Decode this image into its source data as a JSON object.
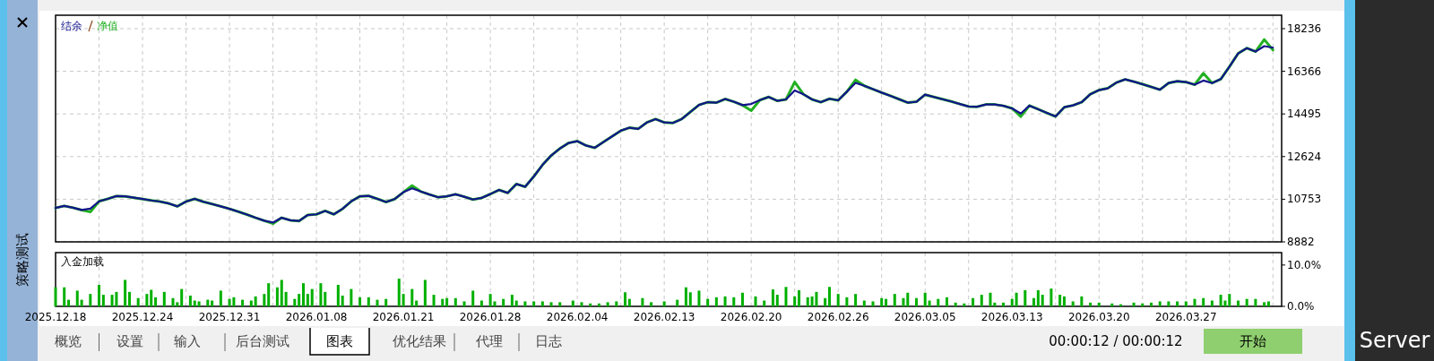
{
  "chart_data": [
    {
      "type": "line",
      "legend": "top left",
      "grid": true,
      "tick_labels": "y",
      "ylim": [
        8882,
        18825
      ],
      "yticks": [
        8882,
        10753,
        12624,
        14495,
        16366,
        18236
      ],
      "categories": [
        null,
        null,
        null,
        null,
        null,
        null,
        null,
        null,
        null,
        null,
        null,
        null,
        null,
        null,
        null,
        null,
        null,
        null,
        null,
        null,
        null,
        null,
        null,
        null,
        null,
        null,
        null,
        null,
        null,
        null,
        null,
        null,
        null,
        null,
        null,
        null,
        null,
        null,
        null,
        null,
        null,
        null,
        null,
        null,
        null,
        null,
        null,
        null,
        null,
        null,
        null,
        null,
        null,
        null,
        null,
        null,
        null,
        null,
        null,
        null,
        null,
        null,
        null,
        null,
        null,
        null,
        null,
        null,
        null,
        null,
        null,
        null,
        null,
        null,
        null,
        null,
        null,
        null,
        null,
        null,
        null,
        null,
        null,
        null,
        null,
        null,
        null,
        null,
        null,
        null,
        null,
        null,
        null,
        null,
        null,
        null,
        null,
        null,
        null,
        null,
        null,
        null,
        null,
        null,
        null,
        null,
        null,
        null,
        null,
        null,
        null,
        null,
        null,
        null,
        null,
        null,
        null,
        null,
        null,
        null,
        null,
        null,
        null,
        null,
        null,
        null,
        null,
        null,
        null,
        null,
        null,
        null,
        null,
        null,
        null,
        null,
        null,
        null,
        null,
        null,
        null,
        null
      ],
      "series": [
        {
          "name": "结余",
          "color": "#14148c",
          "values": [
            10370,
            10460,
            10380,
            10280,
            10340,
            10660,
            10770,
            10890,
            10880,
            10820,
            10760,
            10700,
            10650,
            10570,
            10440,
            10650,
            10770,
            10640,
            10540,
            10440,
            10330,
            10210,
            10080,
            9940,
            9810,
            9730,
            9940,
            9830,
            9800,
            10060,
            10090,
            10240,
            10090,
            10330,
            10660,
            10880,
            10900,
            10770,
            10630,
            10760,
            11060,
            11230,
            11090,
            10960,
            10840,
            10880,
            10970,
            10860,
            10740,
            10810,
            10980,
            11160,
            11030,
            11420,
            11300,
            11750,
            12260,
            12670,
            12980,
            13220,
            13300,
            13110,
            13010,
            13260,
            13510,
            13760,
            13890,
            13840,
            14120,
            14270,
            14120,
            14100,
            14270,
            14580,
            14890,
            15010,
            14990,
            15150,
            15030,
            14880,
            14930,
            15100,
            15240,
            15070,
            15130,
            15520,
            15360,
            15130,
            15010,
            15160,
            15090,
            15470,
            15860,
            15730,
            15580,
            15430,
            15290,
            15140,
            14990,
            15030,
            15340,
            15240,
            15140,
            15040,
            14930,
            14820,
            14810,
            14910,
            14910,
            14850,
            14740,
            14510,
            14860,
            14700,
            14540,
            14380,
            14790,
            14870,
            15010,
            15360,
            15540,
            15620,
            15870,
            16010,
            15910,
            15800,
            15680,
            15560,
            15850,
            15930,
            15890,
            15780,
            15960,
            15850,
            16020,
            16570,
            17150,
            17380,
            17230,
            17470,
            17400,
            null
          ]
        },
        {
          "name": "净值",
          "color": "#22b022",
          "values": [
            10370,
            10460,
            10380,
            10280,
            10200,
            10660,
            10770,
            10890,
            10880,
            10820,
            10760,
            10700,
            10650,
            10570,
            10440,
            10650,
            10770,
            10640,
            10540,
            10440,
            10330,
            10210,
            10080,
            9940,
            9810,
            9680,
            9940,
            9830,
            9800,
            10060,
            10090,
            10240,
            10090,
            10330,
            10660,
            10880,
            10900,
            10770,
            10630,
            10760,
            11060,
            11350,
            11090,
            10960,
            10840,
            10880,
            10970,
            10860,
            10740,
            10810,
            10980,
            11160,
            11030,
            11420,
            11300,
            11750,
            12260,
            12670,
            12980,
            13220,
            13300,
            13110,
            13010,
            13260,
            13510,
            13760,
            13890,
            13840,
            14120,
            14270,
            14120,
            14100,
            14270,
            14580,
            14890,
            15010,
            14990,
            15150,
            15030,
            14880,
            14640,
            15100,
            15240,
            15070,
            15130,
            15890,
            15360,
            15130,
            15010,
            15160,
            15090,
            15470,
            15990,
            15730,
            15580,
            15430,
            15290,
            15140,
            14990,
            15030,
            15340,
            15240,
            15140,
            15040,
            14930,
            14820,
            14810,
            14910,
            14910,
            14850,
            14740,
            14380,
            14860,
            14700,
            14540,
            14380,
            14790,
            14870,
            15010,
            15360,
            15540,
            15620,
            15870,
            16010,
            15910,
            15800,
            15680,
            15560,
            15850,
            15930,
            15890,
            15780,
            16280,
            15850,
            16020,
            16570,
            17150,
            17380,
            17230,
            17760,
            17300,
            null
          ]
        }
      ]
    },
    {
      "type": "bar",
      "title": "入金加载",
      "grid": "x",
      "color": "#00b000",
      "ylim": [
        0,
        13
      ],
      "yticks": [
        {
          "value": 10,
          "label": "10.0%"
        },
        {
          "value": 0,
          "label": "0.0%"
        }
      ],
      "categories": [
        "2025.12.18",
        null,
        null,
        null,
        null,
        null,
        null,
        null,
        null,
        null,
        null,
        null,
        null,
        null,
        null,
        null,
        null,
        null,
        null,
        null,
        "2025.12.24",
        null,
        null,
        null,
        null,
        null,
        null,
        null,
        null,
        null,
        null,
        null,
        null,
        null,
        null,
        null,
        null,
        null,
        null,
        null,
        "2025.12.31",
        null,
        null,
        null,
        null,
        null,
        null,
        null,
        null,
        null,
        null,
        null,
        null,
        null,
        null,
        null,
        null,
        null,
        null,
        null,
        "2026.01.08",
        null,
        null,
        null,
        null,
        null,
        null,
        null,
        null,
        null,
        null,
        null,
        null,
        null,
        null,
        null,
        null,
        null,
        null,
        null,
        "2026.01.21",
        null,
        null,
        null,
        null,
        null,
        null,
        null,
        null,
        null,
        null,
        null,
        null,
        null,
        null,
        null,
        null,
        null,
        null,
        null,
        "2026.01.28",
        null,
        null,
        null,
        null,
        null,
        null,
        null,
        null,
        null,
        null,
        null,
        null,
        null,
        null,
        null,
        null,
        null,
        null,
        null,
        "2026.02.04",
        null,
        null,
        null,
        null,
        null,
        null,
        null,
        null,
        null,
        null,
        null,
        null,
        null,
        null,
        null,
        null,
        null,
        null,
        null,
        "2026.02.13",
        null,
        null,
        null,
        null,
        null,
        null,
        null,
        null,
        null,
        null,
        null,
        null,
        null,
        null,
        null,
        null,
        null,
        null,
        null,
        "2026.02.20",
        null,
        null,
        null,
        null,
        null,
        null,
        null,
        null,
        null,
        null,
        null,
        null,
        null,
        null,
        null,
        null,
        null,
        null,
        null,
        "2026.02.26",
        null,
        null,
        null,
        null,
        null,
        null,
        null,
        null,
        null,
        null,
        null,
        null,
        null,
        null,
        null,
        null,
        null,
        null,
        null,
        "2026.03.05",
        null,
        null,
        null,
        null,
        null,
        null,
        null,
        null,
        null,
        null,
        null,
        null,
        null,
        null,
        null,
        null,
        null,
        null,
        null,
        "2026.03.13",
        null,
        null,
        null,
        null,
        null,
        null,
        null,
        null,
        null,
        null,
        null,
        null,
        null,
        null,
        null,
        null,
        null,
        null,
        null,
        "2026.03.20",
        null,
        null,
        null,
        null,
        null,
        null,
        null,
        null,
        null,
        null,
        null,
        null,
        null,
        null,
        null,
        null,
        null,
        null,
        null,
        "2026.03.27",
        null,
        null,
        null,
        null,
        null,
        null,
        null,
        null,
        null,
        null,
        null,
        null,
        null,
        null,
        null,
        null,
        null,
        null,
        null,
        null,
        null,
        null
      ],
      "values": [
        4.6,
        null,
        4.6,
        1.6,
        null,
        3.8,
        1.6,
        null,
        3.0,
        null,
        5.2,
        2.8,
        null,
        2.8,
        3.5,
        null,
        6.4,
        3.5,
        null,
        2.0,
        null,
        3.0,
        4.0,
        2.2,
        null,
        3.5,
        null,
        2.0,
        1.0,
        4.2,
        null,
        2.6,
        1.4,
        1.2,
        null,
        1.6,
        1.4,
        null,
        3.8,
        null,
        1.8,
        2.2,
        null,
        1.6,
        null,
        1.4,
        2.4,
        null,
        3.0,
        5.6,
        null,
        4.6,
        6.4,
        3.5,
        null,
        1.8,
        3.0,
        5.6,
        3.0,
        4.2,
        null,
        5.6,
        3.5,
        null,
        null,
        5.2,
        2.6,
        null,
        4.2,
        null,
        2.2,
        null,
        2.2,
        null,
        1.6,
        null,
        1.8,
        null,
        null,
        6.7,
        3.0,
        null,
        4.2,
        1.4,
        null,
        6.4,
        null,
        2.8,
        null,
        1.8,
        2.0,
        null,
        2.0,
        null,
        1.2,
        null,
        3.8,
        null,
        1.4,
        null,
        3.0,
        1.2,
        null,
        1.8,
        null,
        2.8,
        1.4,
        null,
        1.2,
        null,
        1.2,
        null,
        1.2,
        null,
        1.0,
        null,
        1.0,
        null,
        null,
        1.4,
        null,
        1.0,
        null,
        0.7,
        null,
        0.7,
        null,
        1.0,
        null,
        1.2,
        null,
        3.4,
        1.8,
        null,
        null,
        2.0,
        null,
        1.0,
        null,
        null,
        1.2,
        null,
        null,
        1.6,
        null,
        4.6,
        3.4,
        null,
        3.8,
        null,
        1.8,
        null,
        2.2,
        null,
        2.4,
        null,
        2.2,
        null,
        3.3,
        null,
        null,
        2.4,
        null,
        1.4,
        null,
        4.1,
        2.8,
        null,
        4.7,
        null,
        2.4,
        3.9,
        null,
        2.2,
        2.4,
        3.5,
        null,
        2.0,
        4.7,
        null,
        3.0,
        null,
        2.2,
        null,
        3.0,
        null,
        1.4,
        null,
        1.2,
        null,
        2.0,
        1.8,
        null,
        3.0,
        null,
        2.0,
        3.3,
        null,
        2.0,
        null,
        3.3,
        1.4,
        null,
        1.8,
        null,
        2.2,
        null,
        0.9,
        null,
        0.7,
        null,
        2.0,
        null,
        2.8,
        null,
        3.3,
        0.9,
        null,
        0.9,
        null,
        1.8,
        3.3,
        null,
        3.9,
        null,
        2.0,
        3.9,
        2.8,
        null,
        4.3,
        null,
        2.8,
        2.4,
        null,
        1.2,
        null,
        2.4,
        null,
        0.9,
        null,
        0.9,
        null,
        null,
        0.7,
        null,
        0.5,
        null,
        null,
        0.9,
        null,
        0.7,
        null,
        0.9,
        null,
        1.2,
        null,
        1.2,
        null,
        1.2,
        null,
        1.2,
        null,
        1.8,
        null,
        2.0,
        null,
        1.4,
        null,
        2.8,
        1.4,
        3.0,
        null,
        1.4,
        null,
        1.8,
        null,
        1.8,
        null,
        1.0,
        1.2,
        null,
        null,
        null
      ]
    },
    {
      "type": "other",
      "annotations": [
        "策略测试",
        "概览",
        "设置",
        "输入",
        "后台测试",
        "图表",
        "优化结果",
        "代理",
        "日志",
        "00:00:12 / 00:00:12",
        "开始",
        "Server"
      ]
    }
  ]
}
